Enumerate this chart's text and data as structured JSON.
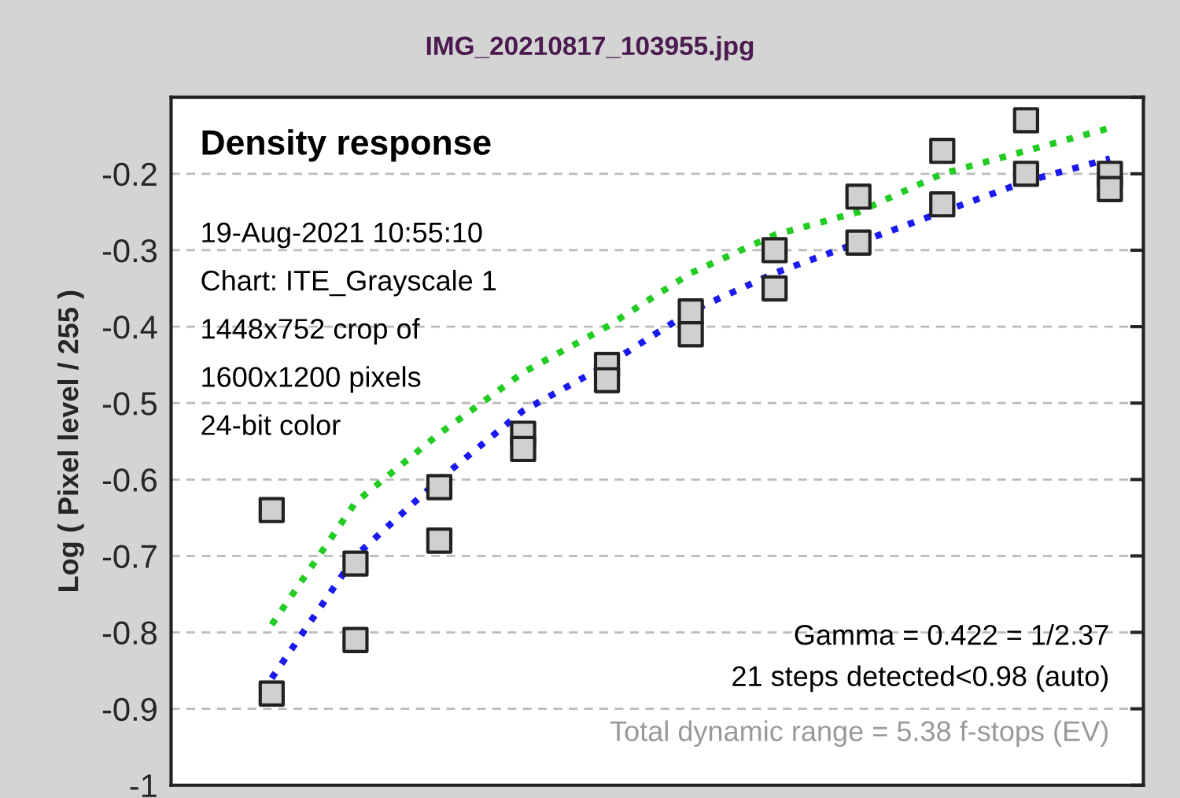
{
  "chart_data": {
    "type": "scatter",
    "title": "IMG_20210817_103955.jpg",
    "ylabel": "Log ( Pixel level / 255 )",
    "categories": [
      null,
      null,
      null,
      null,
      null,
      null,
      null,
      null,
      null,
      null,
      null
    ],
    "ylim": [
      -1,
      -0.1
    ],
    "yticks": [
      -1,
      -0.9,
      -0.8,
      -0.7,
      -0.6,
      -0.5,
      -0.4,
      -0.3,
      -0.2,
      {
        "value": -0.1,
        "label": null
      }
    ],
    "tick_labels": "y",
    "grid": "y",
    "series": [
      {
        "marker": "square",
        "color": "#d0d0d0",
        "values": [
          -0.64,
          -0.71,
          -0.61,
          -0.54,
          -0.45,
          -0.38,
          -0.3,
          -0.23,
          -0.17,
          -0.13,
          -0.2
        ]
      },
      {
        "marker": "square",
        "color": "#d0d0d0",
        "values": [
          -0.88,
          -0.81,
          -0.68,
          -0.56,
          -0.47,
          -0.41,
          -0.35,
          -0.29,
          -0.24,
          -0.2,
          -0.22
        ]
      },
      {
        "type": "line",
        "line_style": "dotted",
        "color": "#22cc22",
        "values": [
          -0.79,
          -0.63,
          -0.54,
          -0.46,
          -0.4,
          -0.33,
          -0.28,
          -0.25,
          -0.2,
          -0.17,
          -0.14
        ]
      },
      {
        "type": "line",
        "line_style": "dotted",
        "color": "#1a1aee",
        "values": [
          -0.86,
          -0.7,
          -0.6,
          -0.51,
          -0.45,
          -0.38,
          -0.33,
          -0.29,
          -0.25,
          -0.21,
          -0.18
        ]
      }
    ],
    "annotations": [
      "Density response",
      "19-Aug-2021 10:55:10",
      "Chart: ITE_Grayscale 1",
      "1448x752 crop of",
      "1600x1200 pixels",
      "24-bit color",
      "Gamma = 0.422 = 1/2.37",
      "21 steps detected<0.98 (auto)",
      "Total dynamic range = 5.38 f-stops (EV)"
    ]
  }
}
